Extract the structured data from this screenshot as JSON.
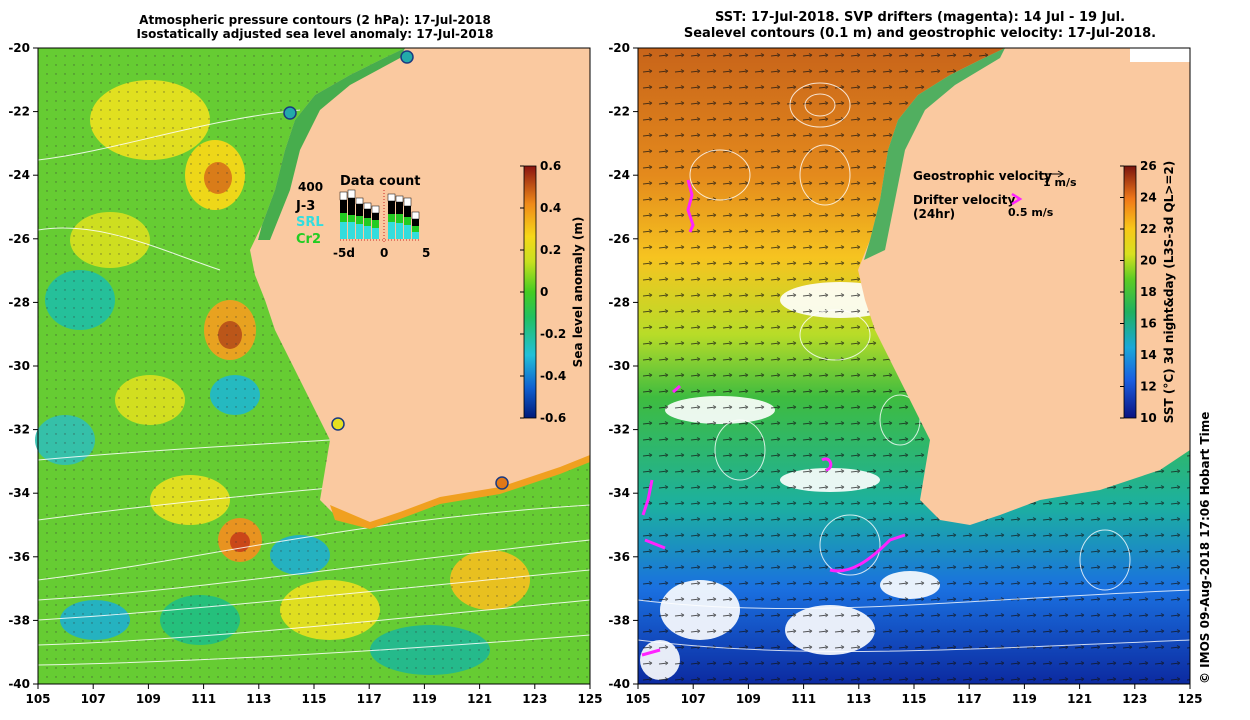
{
  "left_panel": {
    "title_line1": "Atmospheric pressure contours (2 hPa): 17-Jul-2018",
    "title_line2": "Isostatically adjusted sea level anomaly: 17-Jul-2018",
    "x_ticks": [
      "105",
      "107",
      "109",
      "111",
      "113",
      "115",
      "117",
      "119",
      "121",
      "123",
      "125"
    ],
    "y_ticks": [
      "-20",
      "-22",
      "-24",
      "-26",
      "-28",
      "-30",
      "-32",
      "-34",
      "-36",
      "-38",
      "-40"
    ],
    "colorbar": {
      "label": "Sea level anomaly (m)",
      "ticks": [
        "0.6",
        "0.4",
        "0.2",
        "0",
        "-0.2",
        "-0.4",
        "-0.6"
      ],
      "range": [
        -0.6,
        0.6
      ]
    },
    "data_count": {
      "title": "Data count",
      "max_label": "400",
      "missions": [
        {
          "name": "J-3",
          "color": "#000000"
        },
        {
          "name": "SRL",
          "color": "#33dddd"
        },
        {
          "name": "Cr2",
          "color": "#22cc22"
        }
      ],
      "x_labels": [
        "-5d",
        "0",
        "5"
      ]
    }
  },
  "right_panel": {
    "title_line1": "SST: 17-Jul-2018. SVP drifters (magenta): 14 Jul - 19 Jul.",
    "title_line2": "Sealevel contours (0.1 m) and geostrophic velocity: 17-Jul-2018.",
    "x_ticks": [
      "105",
      "107",
      "109",
      "111",
      "113",
      "115",
      "117",
      "119",
      "121",
      "123",
      "125"
    ],
    "y_ticks": [
      "-20",
      "-22",
      "-24",
      "-26",
      "-28",
      "-30",
      "-32",
      "-34",
      "-36",
      "-38",
      "-40"
    ],
    "colorbar": {
      "label": "SST (°C) 3d night&day (L3S-3d QL>=2)",
      "ticks": [
        "26",
        "24",
        "22",
        "20",
        "18",
        "16",
        "14",
        "12",
        "10"
      ],
      "range": [
        10,
        26
      ]
    },
    "legend": {
      "geo_label": "Geostrophic velocity",
      "geo_speed": "1 m/s",
      "drifter_label": "Drifter velocity",
      "drifter_period": "(24hr)",
      "drifter_speed": "0.5 m/s"
    },
    "footer": "© IMOS 09-Aug-2018 17:06 Hobart Time"
  },
  "colors": {
    "land": "#fac9a0",
    "drifter": "#ff22ff"
  }
}
